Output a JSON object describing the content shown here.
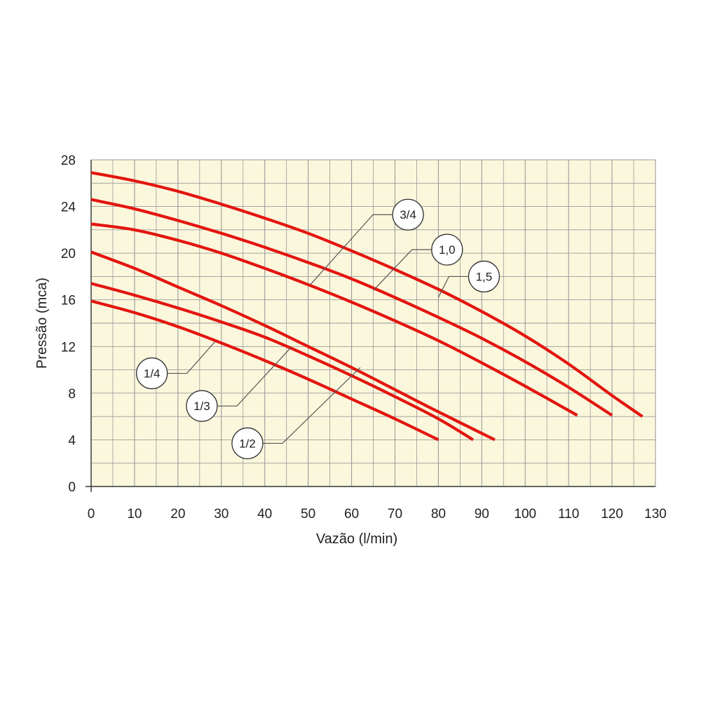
{
  "chart_data": {
    "type": "line",
    "title": "",
    "xlabel": "Vazão (l/min)",
    "ylabel": "Pressão (mca)",
    "xlim": [
      0,
      130
    ],
    "ylim": [
      0,
      28
    ],
    "x_ticks": [
      0,
      10,
      20,
      30,
      40,
      50,
      60,
      70,
      80,
      90,
      100,
      110,
      120,
      130
    ],
    "y_ticks": [
      0,
      4,
      8,
      12,
      16,
      20,
      24,
      28
    ],
    "x_tick_labels": [
      "0",
      "10",
      "20",
      "30",
      "40",
      "50",
      "60",
      "70",
      "80",
      "90",
      "100",
      "110",
      "120",
      "130"
    ],
    "y_tick_labels": [
      "0",
      "4",
      "8",
      "12",
      "16",
      "20",
      "24",
      "28"
    ],
    "grid": true,
    "legend": "none",
    "colors": {
      "plot_background": "#fbf7dc",
      "grid": "#9a9a9a",
      "series": "#e3150f",
      "leader": "#555555"
    },
    "series": [
      {
        "name": "1/4",
        "x": [
          0,
          10,
          20,
          30,
          40,
          50,
          60,
          70,
          80
        ],
        "y": [
          15.9,
          14.9,
          13.7,
          12.3,
          10.8,
          9.2,
          7.5,
          5.8,
          4.0
        ],
        "label_at": [
          14,
          9.7
        ],
        "anchor_at": [
          28.5,
          12.4
        ]
      },
      {
        "name": "1/3",
        "x": [
          0,
          10,
          20,
          30,
          40,
          50,
          60,
          70,
          80,
          88
        ],
        "y": [
          17.4,
          16.4,
          15.3,
          14.1,
          12.8,
          11.2,
          9.5,
          7.7,
          5.8,
          4.0
        ],
        "label_at": [
          25.5,
          6.9
        ],
        "anchor_at": [
          46,
          11.9
        ]
      },
      {
        "name": "1/2",
        "x": [
          0,
          10,
          20,
          30,
          40,
          50,
          60,
          70,
          80,
          93
        ],
        "y": [
          20.1,
          18.7,
          17.1,
          15.5,
          13.8,
          12.0,
          10.2,
          8.3,
          6.4,
          4.0
        ],
        "label_at": [
          36,
          3.7
        ],
        "anchor_at": [
          62,
          10.2
        ]
      },
      {
        "name": "3/4",
        "x": [
          0,
          10,
          20,
          30,
          40,
          50,
          60,
          70,
          80,
          90,
          100,
          112
        ],
        "y": [
          22.5,
          22.0,
          21.1,
          20.0,
          18.7,
          17.3,
          15.8,
          14.2,
          12.5,
          10.6,
          8.6,
          6.1
        ],
        "label_at": [
          73,
          23.3
        ],
        "anchor_at": [
          50.5,
          17.3
        ]
      },
      {
        "name": "1,0",
        "x": [
          0,
          10,
          20,
          30,
          40,
          50,
          60,
          70,
          80,
          90,
          100,
          110,
          120
        ],
        "y": [
          24.6,
          23.8,
          22.8,
          21.7,
          20.5,
          19.2,
          17.8,
          16.2,
          14.5,
          12.7,
          10.7,
          8.5,
          6.1
        ],
        "label_at": [
          82,
          20.3
        ],
        "anchor_at": [
          65,
          16.8
        ]
      },
      {
        "name": "1,5",
        "x": [
          0,
          10,
          20,
          30,
          40,
          50,
          60,
          70,
          80,
          90,
          100,
          110,
          120,
          127
        ],
        "y": [
          26.9,
          26.2,
          25.3,
          24.2,
          23.0,
          21.7,
          20.2,
          18.6,
          16.9,
          15.0,
          12.9,
          10.5,
          7.8,
          6.0
        ],
        "label_at": [
          90.5,
          18.0
        ],
        "anchor_at": [
          80,
          16.2
        ]
      }
    ]
  }
}
